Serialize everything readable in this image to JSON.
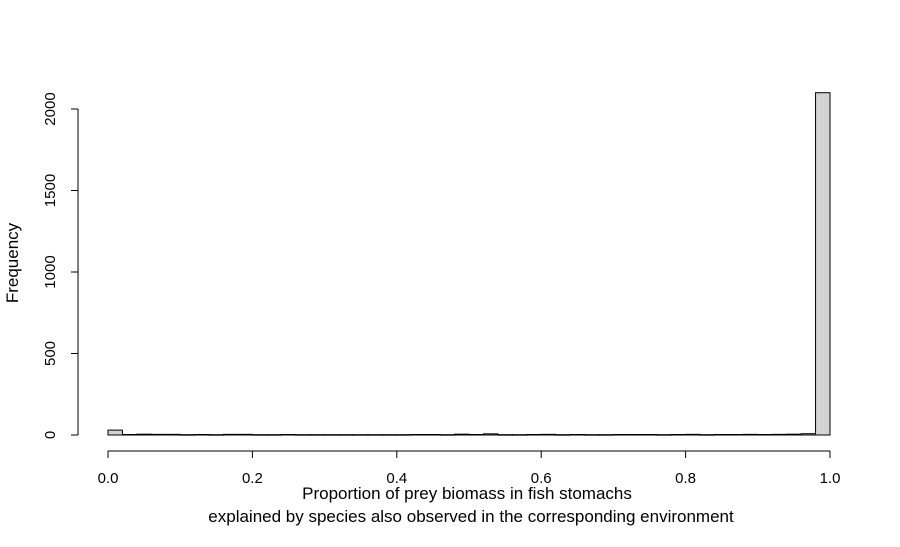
{
  "chart_data": {
    "type": "bar",
    "subtype": "histogram",
    "xlabel_lines": [
      "Proportion of prey biomass in fish stomachs",
      "explained by species also observed in the corresponding environment"
    ],
    "ylabel": "Frequency",
    "x_ticks": [
      "0.0",
      "0.2",
      "0.4",
      "0.6",
      "0.8",
      "1.0"
    ],
    "y_ticks": [
      "0",
      "500",
      "1000",
      "1500",
      "2000"
    ],
    "xlim": [
      0,
      1
    ],
    "ylim": [
      0,
      2100
    ],
    "bin_width": 0.02,
    "bins_start": [
      0.0,
      0.02,
      0.04,
      0.06,
      0.08,
      0.1,
      0.12,
      0.14,
      0.16,
      0.18,
      0.2,
      0.22,
      0.24,
      0.26,
      0.28,
      0.3,
      0.32,
      0.34,
      0.36,
      0.38,
      0.4,
      0.42,
      0.44,
      0.46,
      0.48,
      0.5,
      0.52,
      0.54,
      0.56,
      0.58,
      0.6,
      0.62,
      0.64,
      0.66,
      0.68,
      0.7,
      0.72,
      0.74,
      0.76,
      0.78,
      0.8,
      0.82,
      0.84,
      0.86,
      0.88,
      0.9,
      0.92,
      0.94,
      0.96,
      0.98
    ],
    "values": [
      30,
      3,
      5,
      4,
      4,
      2,
      3,
      2,
      4,
      4,
      2,
      2,
      3,
      2,
      2,
      2,
      2,
      2,
      2,
      2,
      2,
      3,
      3,
      2,
      5,
      3,
      7,
      2,
      2,
      3,
      4,
      2,
      3,
      2,
      2,
      3,
      3,
      3,
      2,
      3,
      4,
      2,
      3,
      3,
      4,
      3,
      4,
      5,
      8,
      2100
    ],
    "bar_fill": "#d3d3d3",
    "bar_stroke": "#000000",
    "grid": false,
    "legend": "none"
  }
}
